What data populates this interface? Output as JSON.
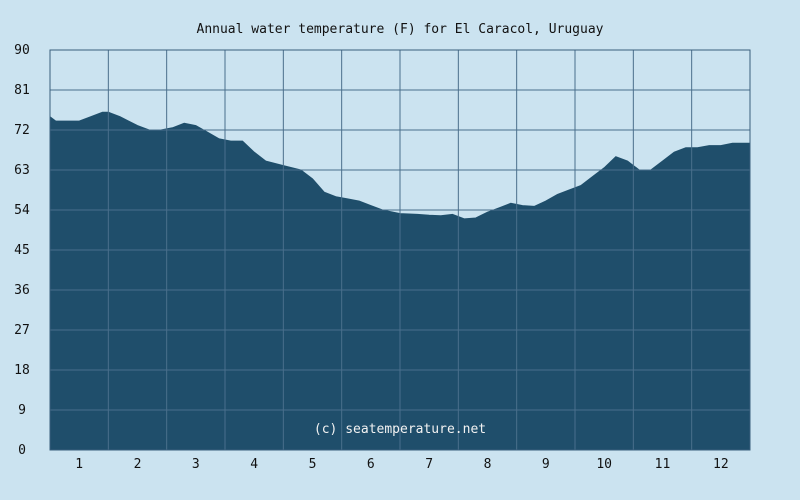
{
  "chart_data": {
    "type": "area",
    "title": "Annual water temperature (F) for El Caracol, Uruguay",
    "watermark": "(c) seatemperature.net",
    "xlabel": "",
    "ylabel": "",
    "x_ticks": [
      "1",
      "2",
      "3",
      "4",
      "5",
      "6",
      "7",
      "8",
      "9",
      "10",
      "11",
      "12"
    ],
    "y_ticks": [
      "0",
      "9",
      "18",
      "27",
      "36",
      "45",
      "54",
      "63",
      "72",
      "81",
      "90"
    ],
    "ylim": [
      0,
      90
    ],
    "xlim": [
      0.5,
      12.5
    ],
    "grid": true,
    "colors": {
      "background": "#cbe3f0",
      "area": "#1f4e6b",
      "grid": "#4a6f8c",
      "frame": "#3a5f7d"
    },
    "series": [
      {
        "values_x": [
          0.5,
          0.6,
          0.8,
          1.0,
          1.2,
          1.4,
          1.5,
          1.7,
          2.0,
          2.2,
          2.4,
          2.6,
          2.8,
          3.0,
          3.2,
          3.4,
          3.6,
          3.8,
          4.0,
          4.2,
          4.5,
          4.8,
          5.0,
          5.2,
          5.4,
          5.6,
          5.8,
          6.0,
          6.2,
          6.5,
          6.8,
          7.0,
          7.2,
          7.4,
          7.6,
          7.8,
          8.0,
          8.2,
          8.4,
          8.6,
          8.8,
          9.0,
          9.2,
          9.4,
          9.6,
          9.8,
          10.0,
          10.2,
          10.4,
          10.6,
          10.8,
          11.0,
          11.2,
          11.4,
          11.6,
          11.8,
          12.0,
          12.2,
          12.4,
          12.5
        ],
        "values_y": [
          75,
          74,
          74,
          74,
          75,
          76,
          76,
          75,
          73,
          72,
          72,
          72.5,
          73.5,
          73,
          71.5,
          70,
          69.5,
          69.5,
          67,
          65,
          64,
          63,
          61,
          58,
          57,
          56.5,
          56,
          55,
          54,
          53.2,
          53,
          52.8,
          52.7,
          53,
          52,
          52.2,
          53.5,
          54.5,
          55.5,
          55,
          54.8,
          56,
          57.5,
          58.5,
          59.5,
          61.5,
          63.5,
          66,
          65,
          63,
          63,
          65,
          67,
          68,
          68,
          68.5,
          68.5,
          69,
          69,
          69
        ]
      }
    ]
  }
}
